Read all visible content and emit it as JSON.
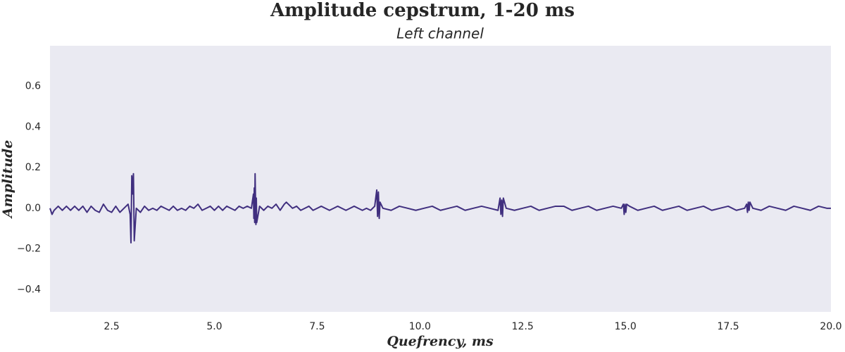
{
  "chart_data": {
    "type": "line",
    "title": "Amplitude cepstrum, 1-20 ms",
    "subtitle": "Left channel",
    "x_label": "Quefrency, ms",
    "y_label": "Amplitude",
    "color": "#402f7f",
    "background": "#eaeaf2",
    "grid": false,
    "xlim": [
      1,
      20
    ],
    "ylim": [
      -0.51,
      0.8
    ],
    "xticks": [
      2.5,
      {
        "value": 5,
        "label": "5.0"
      },
      7.5,
      {
        "value": 10,
        "label": "10.0"
      },
      12.5,
      {
        "value": 15,
        "label": "15.0"
      },
      17.5,
      {
        "value": 20,
        "label": "20.0"
      }
    ],
    "yticks": [
      {
        "value": -0.4,
        "label": "−0.4"
      },
      {
        "value": -0.2,
        "label": "−0.2"
      },
      {
        "value": 0,
        "label": "0.0"
      },
      0.2,
      0.4,
      0.6
    ],
    "x": [
      1.0,
      1.05,
      1.1,
      1.2,
      1.3,
      1.4,
      1.5,
      1.6,
      1.7,
      1.8,
      1.9,
      2.0,
      2.1,
      2.2,
      2.3,
      2.4,
      2.5,
      2.6,
      2.7,
      2.8,
      2.9,
      2.95,
      2.97,
      2.99,
      3.01,
      3.03,
      3.05,
      3.1,
      3.2,
      3.3,
      3.4,
      3.5,
      3.6,
      3.7,
      3.8,
      3.9,
      4.0,
      4.1,
      4.2,
      4.3,
      4.4,
      4.5,
      4.6,
      4.7,
      4.8,
      4.9,
      5.0,
      5.1,
      5.2,
      5.3,
      5.4,
      5.5,
      5.6,
      5.7,
      5.8,
      5.9,
      5.95,
      5.96,
      5.97,
      5.98,
      5.99,
      6.01,
      6.02,
      6.03,
      6.1,
      6.2,
      6.3,
      6.4,
      6.5,
      6.6,
      6.7,
      6.75,
      6.8,
      6.9,
      7.0,
      7.1,
      7.2,
      7.3,
      7.4,
      7.5,
      7.6,
      7.7,
      7.8,
      7.9,
      8.0,
      8.1,
      8.2,
      8.3,
      8.4,
      8.5,
      8.6,
      8.7,
      8.8,
      8.9,
      8.95,
      8.97,
      8.99,
      9.01,
      9.03,
      9.1,
      9.3,
      9.5,
      9.7,
      9.9,
      10.1,
      10.3,
      10.5,
      10.7,
      10.9,
      11.1,
      11.3,
      11.5,
      11.7,
      11.9,
      11.95,
      11.97,
      11.99,
      12.01,
      12.03,
      12.1,
      12.3,
      12.5,
      12.7,
      12.9,
      13.1,
      13.3,
      13.5,
      13.7,
      13.9,
      14.1,
      14.3,
      14.5,
      14.7,
      14.9,
      14.95,
      14.97,
      14.99,
      15.01,
      15.03,
      15.1,
      15.3,
      15.5,
      15.7,
      15.9,
      16.1,
      16.3,
      16.5,
      16.7,
      16.9,
      17.1,
      17.3,
      17.5,
      17.7,
      17.9,
      17.95,
      17.97,
      17.99,
      18.01,
      18.03,
      18.1,
      18.3,
      18.5,
      18.7,
      18.9,
      19.1,
      19.3,
      19.5,
      19.7,
      19.9,
      20.0
    ],
    "values": [
      0.0,
      -0.03,
      -0.01,
      0.01,
      -0.01,
      0.01,
      -0.01,
      0.01,
      -0.01,
      0.01,
      -0.02,
      0.01,
      -0.01,
      -0.02,
      0.02,
      -0.01,
      -0.02,
      0.01,
      -0.02,
      0.0,
      0.02,
      -0.03,
      -0.17,
      0.16,
      0.07,
      0.17,
      -0.16,
      0.0,
      -0.02,
      0.01,
      -0.01,
      0.0,
      -0.01,
      0.01,
      0.0,
      -0.01,
      0.01,
      -0.01,
      0.0,
      -0.01,
      0.01,
      0.0,
      0.02,
      -0.01,
      0.0,
      0.01,
      -0.01,
      0.01,
      -0.01,
      0.01,
      0.0,
      -0.01,
      0.01,
      0.0,
      0.01,
      0.0,
      0.07,
      -0.05,
      0.1,
      -0.07,
      0.17,
      -0.08,
      0.05,
      -0.07,
      0.01,
      -0.01,
      0.01,
      0.0,
      0.02,
      -0.01,
      0.02,
      0.03,
      0.02,
      0.0,
      0.01,
      -0.01,
      0.0,
      0.01,
      -0.01,
      0.0,
      0.01,
      0.0,
      -0.01,
      0.0,
      0.01,
      0.0,
      -0.01,
      0.0,
      0.01,
      0.0,
      -0.01,
      0.0,
      -0.01,
      0.01,
      0.09,
      -0.04,
      0.08,
      -0.05,
      0.03,
      0.0,
      -0.01,
      0.01,
      0.0,
      -0.01,
      0.0,
      0.01,
      -0.01,
      0.0,
      0.01,
      -0.01,
      0.0,
      0.01,
      0.0,
      -0.01,
      0.05,
      -0.03,
      0.04,
      -0.04,
      0.05,
      0.0,
      -0.01,
      0.0,
      0.01,
      -0.01,
      0.0,
      0.01,
      0.01,
      -0.01,
      0.0,
      0.01,
      -0.01,
      0.0,
      0.01,
      0.0,
      0.02,
      -0.03,
      0.02,
      -0.02,
      0.02,
      0.01,
      -0.01,
      0.0,
      0.01,
      -0.01,
      0.0,
      0.01,
      -0.01,
      0.0,
      0.01,
      -0.01,
      0.0,
      0.01,
      -0.01,
      0.0,
      0.02,
      -0.02,
      0.03,
      -0.01,
      0.03,
      0.0,
      -0.01,
      0.01,
      0.0,
      -0.01,
      0.01,
      0.0,
      -0.01,
      0.01,
      0.0,
      0.0
    ]
  }
}
